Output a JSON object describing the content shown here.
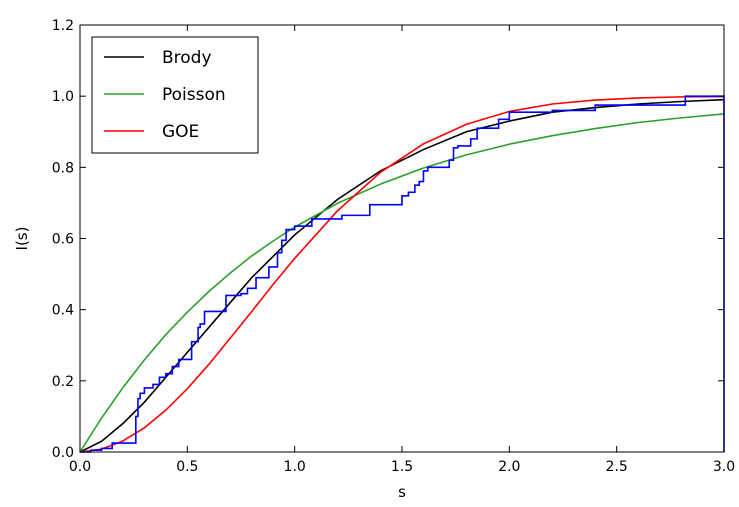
{
  "chart_data": {
    "type": "line",
    "title": "",
    "xlabel": "s",
    "ylabel": "I(s)",
    "xlim": [
      0.0,
      3.0
    ],
    "ylim": [
      0.0,
      1.2
    ],
    "xticks": [
      "0.0",
      "0.5",
      "1.0",
      "1.5",
      "2.0",
      "2.5",
      "3.0"
    ],
    "yticks": [
      "0.0",
      "0.2",
      "0.4",
      "0.6",
      "0.8",
      "1.0",
      "1.2"
    ],
    "grid": false,
    "legend": {
      "location": "upper-left",
      "entries": [
        "Brody",
        "Poisson",
        "GOE"
      ]
    },
    "series": [
      {
        "name": "Brody",
        "color": "#000000",
        "x": [
          0.0,
          0.1,
          0.2,
          0.3,
          0.4,
          0.5,
          0.6,
          0.7,
          0.8,
          0.9,
          1.0,
          1.2,
          1.4,
          1.6,
          1.8,
          2.0,
          2.2,
          2.4,
          2.6,
          2.8,
          3.0
        ],
        "y": [
          0.0,
          0.03,
          0.08,
          0.14,
          0.21,
          0.28,
          0.35,
          0.42,
          0.49,
          0.55,
          0.61,
          0.71,
          0.79,
          0.85,
          0.9,
          0.93,
          0.955,
          0.968,
          0.978,
          0.985,
          0.99
        ]
      },
      {
        "name": "Poisson",
        "color": "#2ca02c",
        "x": [
          0.0,
          0.1,
          0.2,
          0.3,
          0.4,
          0.5,
          0.6,
          0.7,
          0.8,
          0.9,
          1.0,
          1.2,
          1.4,
          1.6,
          1.8,
          2.0,
          2.2,
          2.4,
          2.6,
          2.8,
          3.0
        ],
        "y": [
          0.0,
          0.095,
          0.181,
          0.259,
          0.33,
          0.393,
          0.451,
          0.503,
          0.551,
          0.593,
          0.632,
          0.699,
          0.753,
          0.798,
          0.835,
          0.865,
          0.889,
          0.909,
          0.926,
          0.939,
          0.95
        ]
      },
      {
        "name": "GOE",
        "color": "#ff0000",
        "x": [
          0.0,
          0.1,
          0.2,
          0.3,
          0.4,
          0.5,
          0.6,
          0.7,
          0.8,
          0.9,
          1.0,
          1.2,
          1.4,
          1.6,
          1.8,
          2.0,
          2.2,
          2.4,
          2.6,
          2.8,
          3.0
        ],
        "y": [
          0.0,
          0.008,
          0.031,
          0.068,
          0.118,
          0.178,
          0.246,
          0.32,
          0.395,
          0.471,
          0.544,
          0.678,
          0.786,
          0.866,
          0.921,
          0.957,
          0.978,
          0.989,
          0.995,
          0.998,
          0.999
        ]
      },
      {
        "name": "",
        "color": "#0000ff",
        "step": true,
        "x": [
          0.0,
          0.05,
          0.1,
          0.15,
          0.26,
          0.27,
          0.28,
          0.3,
          0.34,
          0.37,
          0.4,
          0.43,
          0.46,
          0.52,
          0.55,
          0.56,
          0.58,
          0.68,
          0.75,
          0.78,
          0.82,
          0.88,
          0.92,
          0.94,
          0.96,
          1.0,
          1.08,
          1.22,
          1.35,
          1.5,
          1.53,
          1.56,
          1.58,
          1.6,
          1.62,
          1.72,
          1.74,
          1.76,
          1.82,
          1.85,
          1.95,
          2.0,
          2.2,
          2.4,
          2.6,
          2.82,
          2.99,
          3.0
        ],
        "y": [
          0.0,
          0.005,
          0.01,
          0.025,
          0.1,
          0.15,
          0.165,
          0.18,
          0.19,
          0.21,
          0.22,
          0.24,
          0.26,
          0.31,
          0.35,
          0.36,
          0.395,
          0.44,
          0.445,
          0.46,
          0.49,
          0.52,
          0.56,
          0.595,
          0.625,
          0.635,
          0.655,
          0.665,
          0.695,
          0.72,
          0.73,
          0.75,
          0.76,
          0.79,
          0.8,
          0.82,
          0.855,
          0.86,
          0.88,
          0.91,
          0.935,
          0.955,
          0.96,
          0.975,
          0.975,
          1.0,
          1.0,
          0.0
        ]
      }
    ]
  }
}
